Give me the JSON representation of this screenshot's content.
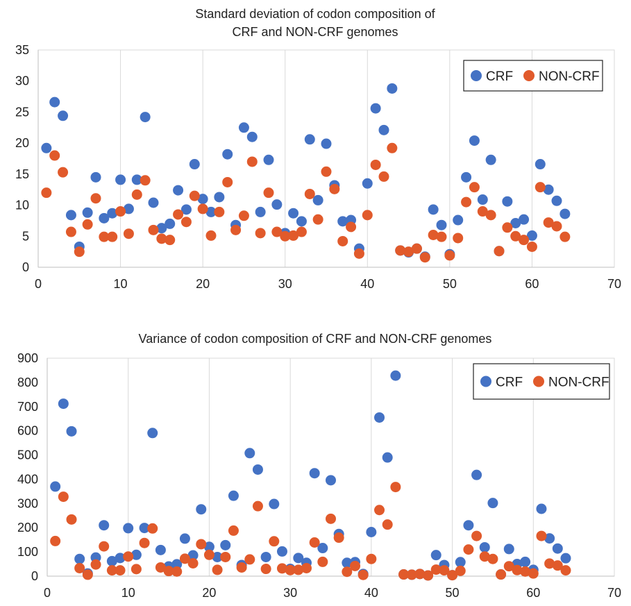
{
  "colors": {
    "crf": "#4472C4",
    "non_crf": "#E15A2B"
  },
  "chart_data": [
    {
      "type": "scatter",
      "title": [
        "Standard deviation of codon composition of",
        "CRF and NON-CRF genomes"
      ],
      "xlabel": "",
      "ylabel": "",
      "xlim": [
        0,
        70
      ],
      "ylim": [
        0,
        35
      ],
      "xticks": [
        0,
        10,
        20,
        30,
        40,
        50,
        60,
        70
      ],
      "yticks": [
        0,
        5,
        10,
        15,
        20,
        25,
        30,
        35
      ],
      "grid": "vertical",
      "legend_position": "top-right",
      "series": [
        {
          "name": "CRF",
          "color": "#4472C4",
          "x": [
            1,
            2,
            3,
            4,
            5,
            6,
            7,
            8,
            9,
            10,
            11,
            12,
            13,
            14,
            15,
            16,
            17,
            18,
            19,
            20,
            21,
            22,
            23,
            24,
            25,
            26,
            27,
            28,
            29,
            30,
            31,
            32,
            33,
            34,
            35,
            36,
            37,
            38,
            39,
            40,
            41,
            42,
            43,
            44,
            45,
            46,
            47,
            48,
            49,
            50,
            51,
            52,
            53,
            54,
            55,
            56,
            57,
            58,
            59,
            60,
            61,
            62,
            63,
            64
          ],
          "y": [
            19.2,
            26.6,
            24.4,
            8.4,
            3.3,
            8.8,
            14.5,
            7.9,
            8.7,
            14.1,
            9.4,
            14.1,
            24.2,
            10.4,
            6.3,
            7,
            12.4,
            9.3,
            16.6,
            11,
            8.9,
            11.3,
            18.2,
            6.8,
            22.5,
            21,
            8.9,
            17.3,
            10.1,
            5.5,
            8.7,
            7.4,
            20.6,
            10.8,
            19.9,
            13.2,
            7.4,
            7.6,
            3,
            13.5,
            25.6,
            22.1,
            28.8,
            2.7,
            2.4,
            3,
            1.7,
            9.3,
            6.8,
            2.1,
            7.6,
            14.5,
            20.4,
            10.9,
            17.3,
            2.6,
            10.6,
            7.1,
            7.7,
            5.1,
            16.6,
            12.5,
            10.7,
            8.6
          ]
        },
        {
          "name": "NON-CRF",
          "color": "#E15A2B",
          "x": [
            1,
            2,
            3,
            4,
            5,
            6,
            7,
            8,
            9,
            10,
            11,
            12,
            13,
            14,
            15,
            16,
            17,
            18,
            19,
            20,
            21,
            22,
            23,
            24,
            25,
            26,
            27,
            28,
            29,
            30,
            31,
            32,
            33,
            34,
            35,
            36,
            37,
            38,
            39,
            40,
            41,
            42,
            43,
            44,
            45,
            46,
            47,
            48,
            49,
            50,
            51,
            52,
            53,
            54,
            55,
            56,
            57,
            58,
            59,
            60,
            61,
            62,
            63,
            64
          ],
          "y": [
            12,
            18,
            15.3,
            5.7,
            2.5,
            6.9,
            11.1,
            4.9,
            4.9,
            9,
            5.4,
            11.7,
            14,
            6,
            4.6,
            4.4,
            8.5,
            7.3,
            11.5,
            9.4,
            5.1,
            8.9,
            13.7,
            6,
            8.3,
            17,
            5.5,
            12,
            5.7,
            5,
            5.1,
            5.7,
            11.8,
            7.7,
            15.4,
            12.6,
            4.2,
            6.5,
            2.2,
            8.4,
            16.5,
            14.6,
            19.2,
            2.7,
            2.5,
            3,
            1.6,
            5.2,
            4.9,
            1.9,
            4.7,
            10.5,
            12.9,
            9,
            8.4,
            2.6,
            6.4,
            5,
            4.4,
            3.3,
            12.9,
            7.2,
            6.6,
            4.9
          ]
        }
      ]
    },
    {
      "type": "scatter",
      "title": [
        "Variance of codon composition of CRF and NON-CRF genomes"
      ],
      "xlabel": "",
      "ylabel": "",
      "xlim": [
        0,
        70
      ],
      "ylim": [
        0,
        900
      ],
      "xticks": [
        0,
        10,
        20,
        30,
        40,
        50,
        60,
        70
      ],
      "yticks": [
        0,
        100,
        200,
        300,
        400,
        500,
        600,
        700,
        800,
        900
      ],
      "grid": "vertical",
      "legend_position": "top-right",
      "series": [
        {
          "name": "CRF",
          "color": "#4472C4",
          "x": [
            1,
            2,
            3,
            4,
            5,
            6,
            7,
            8,
            9,
            10,
            11,
            12,
            13,
            14,
            15,
            16,
            17,
            18,
            19,
            20,
            21,
            22,
            23,
            24,
            25,
            26,
            27,
            28,
            29,
            30,
            31,
            32,
            33,
            34,
            35,
            36,
            37,
            38,
            39,
            40,
            41,
            42,
            43,
            44,
            45,
            46,
            47,
            48,
            49,
            50,
            51,
            52,
            53,
            54,
            55,
            56,
            57,
            58,
            59,
            60,
            61,
            62,
            63,
            64
          ],
          "y": [
            370,
            712,
            598,
            71,
            11,
            77,
            210,
            62,
            75,
            198,
            88,
            199,
            591,
            108,
            40,
            49,
            155,
            86,
            276,
            121,
            79,
            128,
            332,
            46,
            508,
            440,
            79,
            298,
            102,
            30,
            75,
            55,
            425,
            116,
            396,
            174,
            55,
            58,
            9,
            182,
            655,
            490,
            828,
            7,
            6,
            9,
            3,
            87,
            46,
            4,
            58,
            210,
            418,
            119,
            302,
            7,
            112,
            50,
            59,
            26,
            278,
            156,
            114,
            74
          ]
        },
        {
          "name": "NON-CRF",
          "color": "#E15A2B",
          "x": [
            1,
            2,
            3,
            4,
            5,
            6,
            7,
            8,
            9,
            10,
            11,
            12,
            13,
            14,
            15,
            16,
            17,
            18,
            19,
            20,
            21,
            22,
            23,
            24,
            25,
            26,
            27,
            28,
            29,
            30,
            31,
            32,
            33,
            34,
            35,
            36,
            37,
            38,
            39,
            40,
            41,
            42,
            43,
            44,
            45,
            46,
            47,
            48,
            49,
            50,
            51,
            52,
            53,
            54,
            55,
            56,
            57,
            58,
            59,
            60,
            61,
            62,
            63,
            64
          ],
          "y": [
            145,
            328,
            234,
            33,
            6,
            48,
            123,
            24,
            24,
            81,
            29,
            137,
            197,
            36,
            21,
            19,
            72,
            53,
            132,
            88,
            26,
            79,
            188,
            36,
            69,
            289,
            30,
            144,
            32,
            25,
            26,
            33,
            139,
            59,
            237,
            159,
            18,
            42,
            5,
            71,
            273,
            213,
            368,
            7,
            6,
            9,
            3,
            27,
            24,
            4,
            22,
            110,
            166,
            81,
            71,
            7,
            41,
            25,
            19,
            11,
            166,
            52,
            44,
            24
          ]
        }
      ]
    }
  ]
}
